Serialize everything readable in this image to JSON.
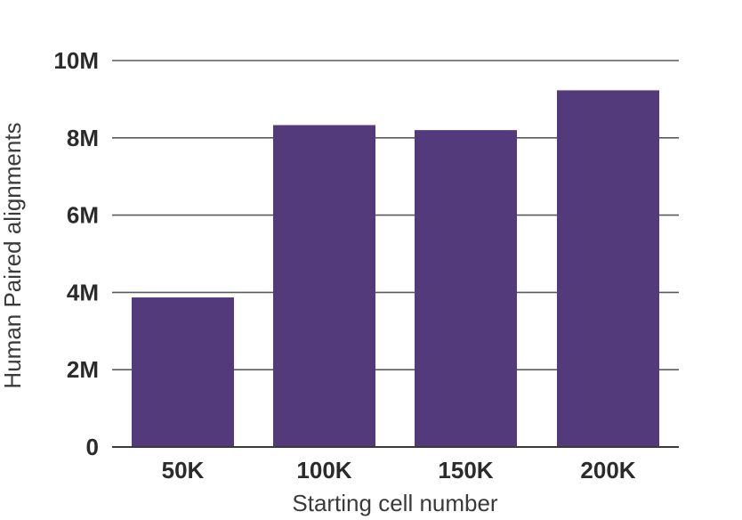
{
  "chart_data": {
    "type": "bar",
    "categories": [
      "50K",
      "100K",
      "150K",
      "200K"
    ],
    "values": [
      3870000,
      8330000,
      8200000,
      9230000
    ],
    "title": "",
    "xlabel": "Starting cell number",
    "ylabel": "Human Paired alignments",
    "ylim": [
      0,
      10000000
    ],
    "yticks": [
      0,
      2000000,
      4000000,
      6000000,
      8000000,
      10000000
    ],
    "ytick_labels": [
      "0",
      "2M",
      "4M",
      "6M",
      "8M",
      "10M"
    ],
    "grid": true,
    "bar_color": "#533a7b",
    "legend": "none"
  }
}
